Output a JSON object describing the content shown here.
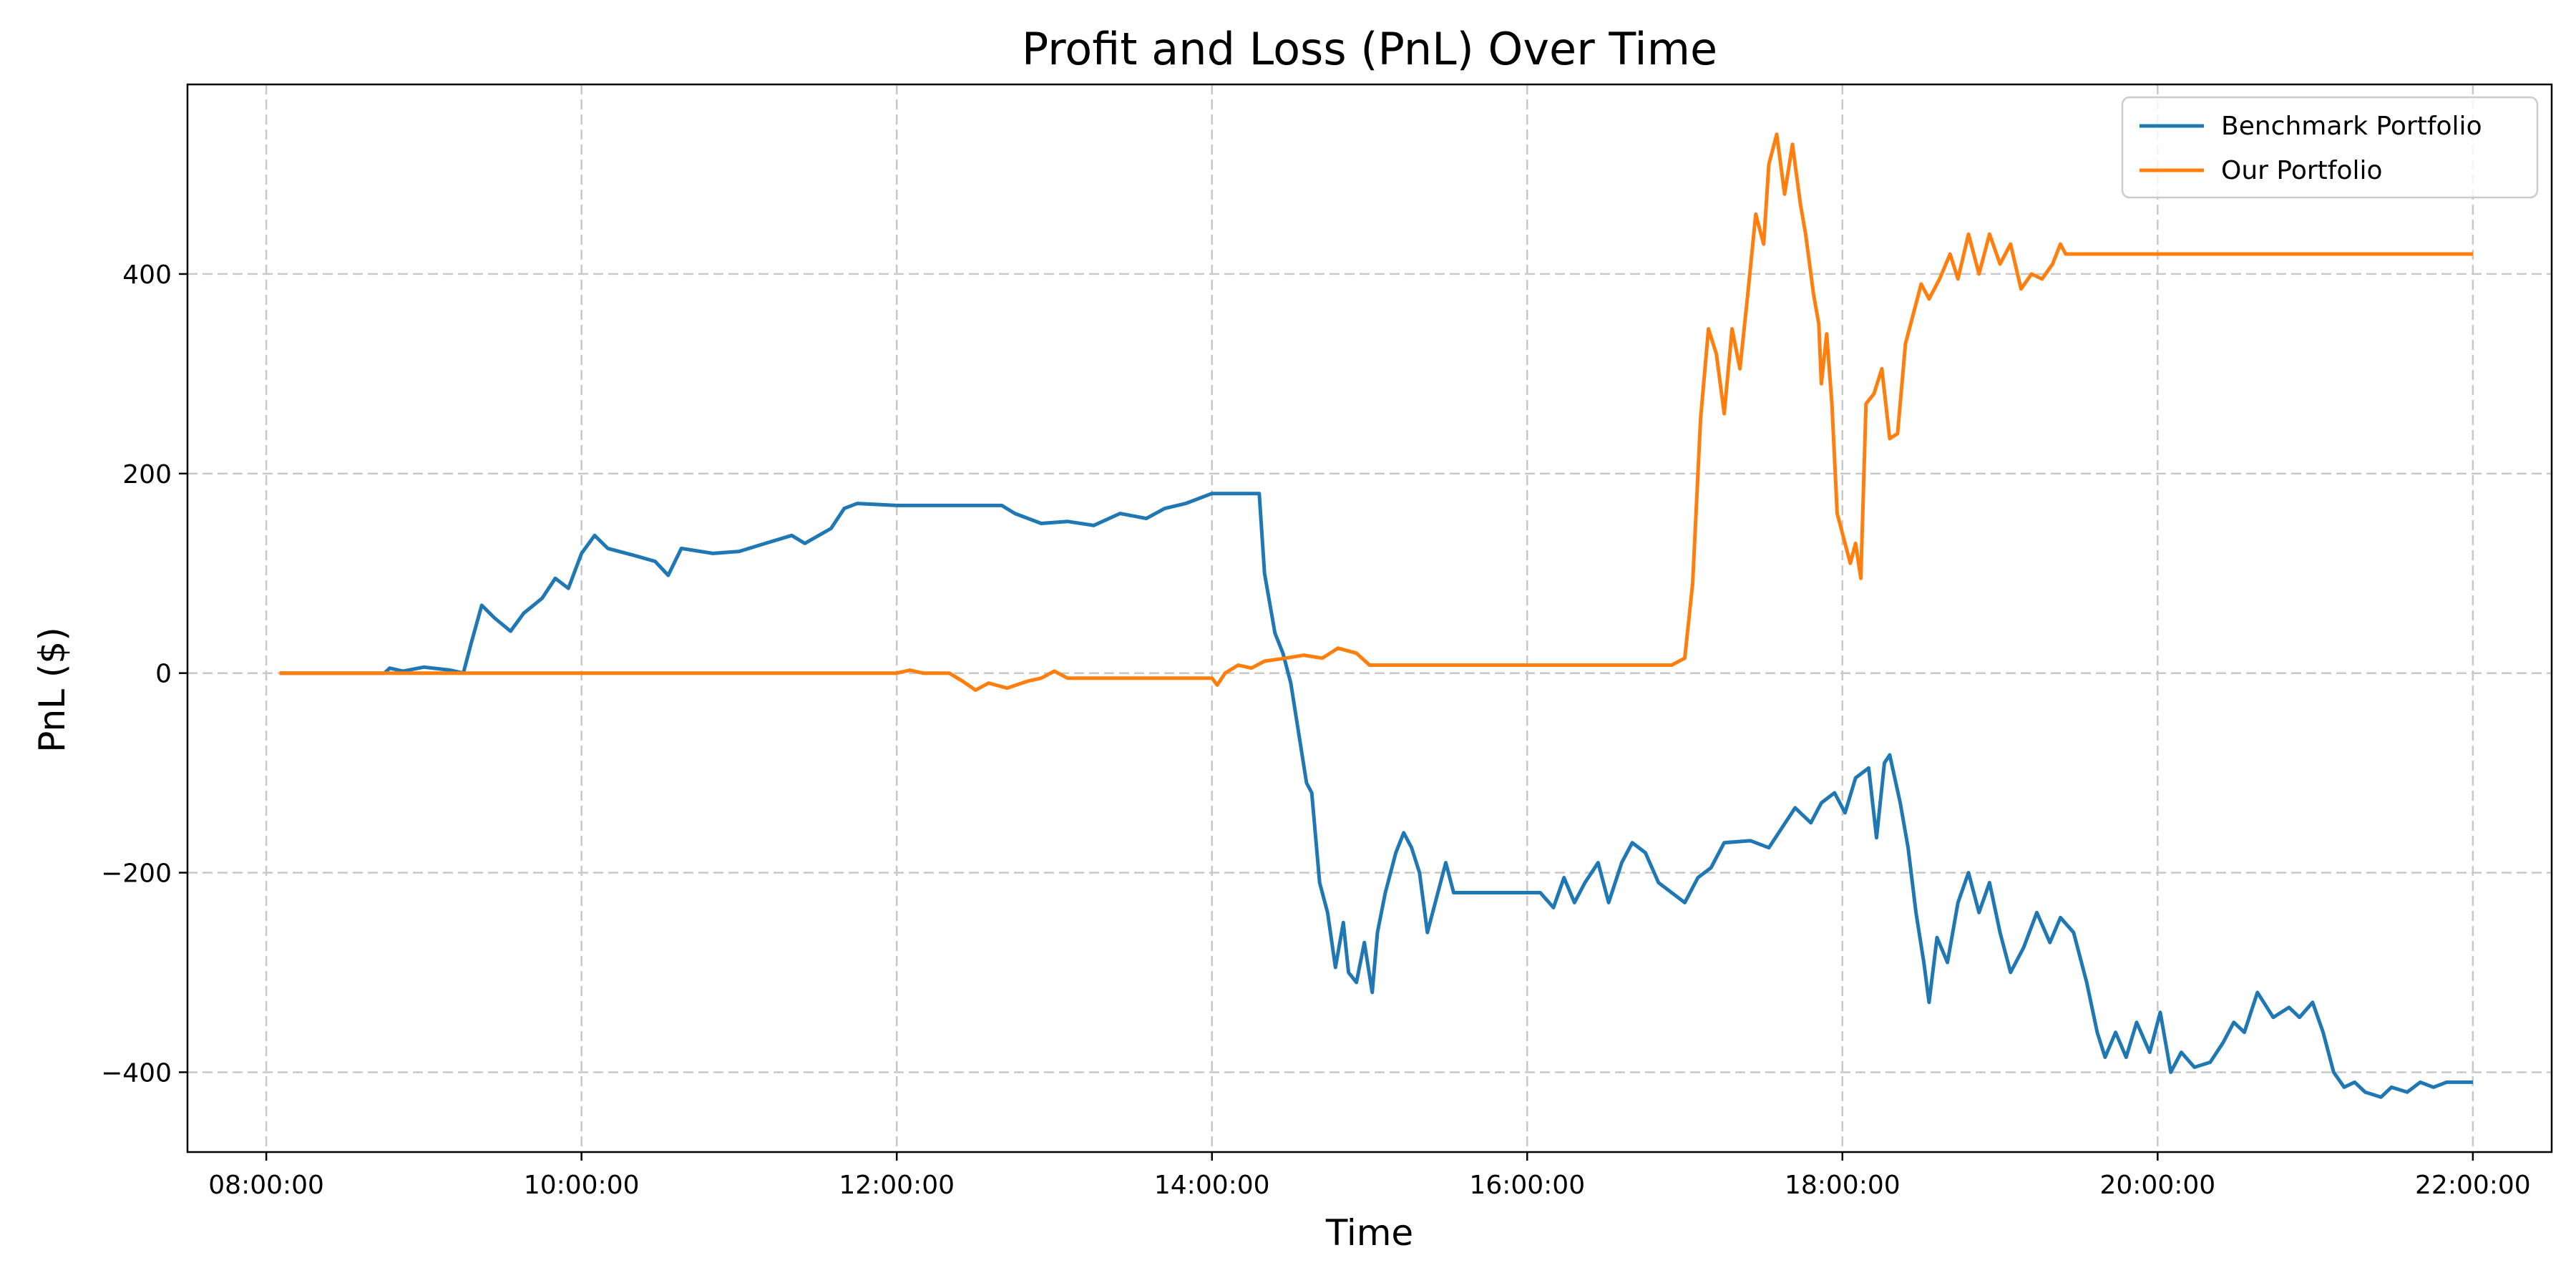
{
  "chart_data": {
    "type": "line",
    "title": "Profit and Loss (PnL) Over Time",
    "xlabel": "Time",
    "ylabel": "PnL ($)",
    "xlim": [
      "07:30:00",
      "22:30:00"
    ],
    "ylim": [
      -480,
      590
    ],
    "x_ticks": [
      "08:00:00",
      "10:00:00",
      "12:00:00",
      "14:00:00",
      "16:00:00",
      "18:00:00",
      "20:00:00",
      "22:00:00"
    ],
    "y_ticks": [
      400,
      200,
      0,
      -200,
      -400
    ],
    "y_tick_labels": [
      "400",
      "200",
      "0",
      "−200",
      "−400"
    ],
    "grid": true,
    "legend_position": "top-right",
    "series": [
      {
        "name": "Benchmark Portfolio",
        "color": "#1f77b4",
        "points": [
          [
            "08:05:00",
            0
          ],
          [
            "08:45:00",
            0
          ],
          [
            "08:47:00",
            5
          ],
          [
            "08:52:00",
            2
          ],
          [
            "09:00:00",
            6
          ],
          [
            "09:10:00",
            3
          ],
          [
            "09:15:00",
            0
          ],
          [
            "09:18:00",
            30
          ],
          [
            "09:22:00",
            68
          ],
          [
            "09:27:00",
            55
          ],
          [
            "09:33:00",
            42
          ],
          [
            "09:38:00",
            60
          ],
          [
            "09:45:00",
            75
          ],
          [
            "09:50:00",
            95
          ],
          [
            "09:55:00",
            85
          ],
          [
            "10:00:00",
            120
          ],
          [
            "10:05:00",
            138
          ],
          [
            "10:10:00",
            125
          ],
          [
            "10:20:00",
            118
          ],
          [
            "10:28:00",
            112
          ],
          [
            "10:33:00",
            98
          ],
          [
            "10:38:00",
            125
          ],
          [
            "10:50:00",
            120
          ],
          [
            "11:00:00",
            122
          ],
          [
            "11:10:00",
            130
          ],
          [
            "11:20:00",
            138
          ],
          [
            "11:25:00",
            130
          ],
          [
            "11:35:00",
            145
          ],
          [
            "11:40:00",
            165
          ],
          [
            "11:45:00",
            170
          ],
          [
            "12:00:00",
            168
          ],
          [
            "12:40:00",
            168
          ],
          [
            "12:45:00",
            160
          ],
          [
            "12:55:00",
            150
          ],
          [
            "13:05:00",
            152
          ],
          [
            "13:15:00",
            148
          ],
          [
            "13:25:00",
            160
          ],
          [
            "13:35:00",
            155
          ],
          [
            "13:42:00",
            165
          ],
          [
            "13:50:00",
            170
          ],
          [
            "14:00:00",
            180
          ],
          [
            "14:18:00",
            180
          ],
          [
            "14:20:00",
            100
          ],
          [
            "14:24:00",
            40
          ],
          [
            "14:27:00",
            20
          ],
          [
            "14:30:00",
            -10
          ],
          [
            "14:33:00",
            -60
          ],
          [
            "14:36:00",
            -110
          ],
          [
            "14:38:00",
            -120
          ],
          [
            "14:41:00",
            -210
          ],
          [
            "14:44:00",
            -240
          ],
          [
            "14:47:00",
            -295
          ],
          [
            "14:50:00",
            -250
          ],
          [
            "14:52:00",
            -300
          ],
          [
            "14:55:00",
            -310
          ],
          [
            "14:58:00",
            -270
          ],
          [
            "15:01:00",
            -320
          ],
          [
            "15:03:00",
            -260
          ],
          [
            "15:06:00",
            -220
          ],
          [
            "15:10:00",
            -180
          ],
          [
            "15:13:00",
            -160
          ],
          [
            "15:16:00",
            -175
          ],
          [
            "15:19:00",
            -200
          ],
          [
            "15:22:00",
            -260
          ],
          [
            "15:25:00",
            -230
          ],
          [
            "15:29:00",
            -190
          ],
          [
            "15:32:00",
            -220
          ],
          [
            "15:45:00",
            -220
          ],
          [
            "16:05:00",
            -220
          ],
          [
            "16:10:00",
            -235
          ],
          [
            "16:14:00",
            -205
          ],
          [
            "16:18:00",
            -230
          ],
          [
            "16:22:00",
            -210
          ],
          [
            "16:27:00",
            -190
          ],
          [
            "16:31:00",
            -230
          ],
          [
            "16:36:00",
            -190
          ],
          [
            "16:40:00",
            -170
          ],
          [
            "16:45:00",
            -180
          ],
          [
            "16:50:00",
            -210
          ],
          [
            "16:55:00",
            -220
          ],
          [
            "17:00:00",
            -230
          ],
          [
            "17:05:00",
            -205
          ],
          [
            "17:10:00",
            -195
          ],
          [
            "17:15:00",
            -170
          ],
          [
            "17:25:00",
            -168
          ],
          [
            "17:32:00",
            -175
          ],
          [
            "17:37:00",
            -155
          ],
          [
            "17:42:00",
            -135
          ],
          [
            "17:48:00",
            -150
          ],
          [
            "17:52:00",
            -130
          ],
          [
            "17:57:00",
            -120
          ],
          [
            "18:01:00",
            -140
          ],
          [
            "18:05:00",
            -105
          ],
          [
            "18:10:00",
            -95
          ],
          [
            "18:13:00",
            -165
          ],
          [
            "18:16:00",
            -90
          ],
          [
            "18:18:00",
            -82
          ],
          [
            "18:22:00",
            -130
          ],
          [
            "18:25:00",
            -175
          ],
          [
            "18:28:00",
            -240
          ],
          [
            "18:31:00",
            -290
          ],
          [
            "18:33:00",
            -330
          ],
          [
            "18:36:00",
            -265
          ],
          [
            "18:40:00",
            -290
          ],
          [
            "18:44:00",
            -230
          ],
          [
            "18:48:00",
            -200
          ],
          [
            "18:52:00",
            -240
          ],
          [
            "18:56:00",
            -210
          ],
          [
            "19:00:00",
            -260
          ],
          [
            "19:04:00",
            -300
          ],
          [
            "19:09:00",
            -275
          ],
          [
            "19:14:00",
            -240
          ],
          [
            "19:19:00",
            -270
          ],
          [
            "19:23:00",
            -245
          ],
          [
            "19:28:00",
            -260
          ],
          [
            "19:33:00",
            -310
          ],
          [
            "19:37:00",
            -360
          ],
          [
            "19:40:00",
            -385
          ],
          [
            "19:44:00",
            -360
          ],
          [
            "19:48:00",
            -385
          ],
          [
            "19:52:00",
            -350
          ],
          [
            "19:57:00",
            -380
          ],
          [
            "20:01:00",
            -340
          ],
          [
            "20:05:00",
            -400
          ],
          [
            "20:09:00",
            -380
          ],
          [
            "20:14:00",
            -395
          ],
          [
            "20:20:00",
            -390
          ],
          [
            "20:25:00",
            -370
          ],
          [
            "20:29:00",
            -350
          ],
          [
            "20:33:00",
            -360
          ],
          [
            "20:38:00",
            -320
          ],
          [
            "20:44:00",
            -345
          ],
          [
            "20:50:00",
            -335
          ],
          [
            "20:54:00",
            -345
          ],
          [
            "20:59:00",
            -330
          ],
          [
            "21:03:00",
            -360
          ],
          [
            "21:07:00",
            -400
          ],
          [
            "21:11:00",
            -415
          ],
          [
            "21:15:00",
            -410
          ],
          [
            "21:19:00",
            -420
          ],
          [
            "21:25:00",
            -425
          ],
          [
            "21:29:00",
            -415
          ],
          [
            "21:35:00",
            -420
          ],
          [
            "21:40:00",
            -410
          ],
          [
            "21:45:00",
            -415
          ],
          [
            "21:50:00",
            -410
          ],
          [
            "22:00:00",
            -410
          ]
        ]
      },
      {
        "name": "Our Portfolio",
        "color": "#ff7f0e",
        "points": [
          [
            "08:05:00",
            0
          ],
          [
            "12:00:00",
            0
          ],
          [
            "12:05:00",
            3
          ],
          [
            "12:10:00",
            0
          ],
          [
            "12:20:00",
            0
          ],
          [
            "12:25:00",
            -8
          ],
          [
            "12:30:00",
            -17
          ],
          [
            "12:35:00",
            -10
          ],
          [
            "12:42:00",
            -15
          ],
          [
            "12:50:00",
            -8
          ],
          [
            "12:55:00",
            -5
          ],
          [
            "13:00:00",
            2
          ],
          [
            "13:05:00",
            -5
          ],
          [
            "13:30:00",
            -5
          ],
          [
            "14:00:00",
            -5
          ],
          [
            "14:02:00",
            -12
          ],
          [
            "14:05:00",
            0
          ],
          [
            "14:10:00",
            8
          ],
          [
            "14:15:00",
            5
          ],
          [
            "14:20:00",
            12
          ],
          [
            "14:28:00",
            15
          ],
          [
            "14:35:00",
            18
          ],
          [
            "14:42:00",
            15
          ],
          [
            "14:48:00",
            25
          ],
          [
            "14:55:00",
            20
          ],
          [
            "15:00:00",
            8
          ],
          [
            "16:00:00",
            8
          ],
          [
            "16:55:00",
            8
          ],
          [
            "17:00:00",
            15
          ],
          [
            "17:03:00",
            90
          ],
          [
            "17:06:00",
            255
          ],
          [
            "17:09:00",
            345
          ],
          [
            "17:12:00",
            320
          ],
          [
            "17:15:00",
            260
          ],
          [
            "17:18:00",
            345
          ],
          [
            "17:21:00",
            305
          ],
          [
            "17:24:00",
            380
          ],
          [
            "17:27:00",
            460
          ],
          [
            "17:30:00",
            430
          ],
          [
            "17:32:00",
            510
          ],
          [
            "17:35:00",
            540
          ],
          [
            "17:38:00",
            480
          ],
          [
            "17:41:00",
            530
          ],
          [
            "17:44:00",
            470
          ],
          [
            "17:46:00",
            440
          ],
          [
            "17:49:00",
            380
          ],
          [
            "17:51:00",
            350
          ],
          [
            "17:52:00",
            290
          ],
          [
            "17:54:00",
            340
          ],
          [
            "17:56:00",
            270
          ],
          [
            "17:58:00",
            160
          ],
          [
            "18:01:00",
            130
          ],
          [
            "18:03:00",
            110
          ],
          [
            "18:05:00",
            130
          ],
          [
            "18:07:00",
            95
          ],
          [
            "18:09:00",
            270
          ],
          [
            "18:12:00",
            280
          ],
          [
            "18:15:00",
            305
          ],
          [
            "18:18:00",
            235
          ],
          [
            "18:21:00",
            240
          ],
          [
            "18:24:00",
            330
          ],
          [
            "18:27:00",
            360
          ],
          [
            "18:30:00",
            390
          ],
          [
            "18:33:00",
            375
          ],
          [
            "18:37:00",
            395
          ],
          [
            "18:41:00",
            420
          ],
          [
            "18:44:00",
            395
          ],
          [
            "18:48:00",
            440
          ],
          [
            "18:52:00",
            400
          ],
          [
            "18:56:00",
            440
          ],
          [
            "19:00:00",
            410
          ],
          [
            "19:04:00",
            430
          ],
          [
            "19:08:00",
            385
          ],
          [
            "19:12:00",
            400
          ],
          [
            "19:16:00",
            395
          ],
          [
            "19:20:00",
            410
          ],
          [
            "19:23:00",
            430
          ],
          [
            "19:25:00",
            420
          ],
          [
            "22:00:00",
            420
          ]
        ]
      }
    ]
  }
}
